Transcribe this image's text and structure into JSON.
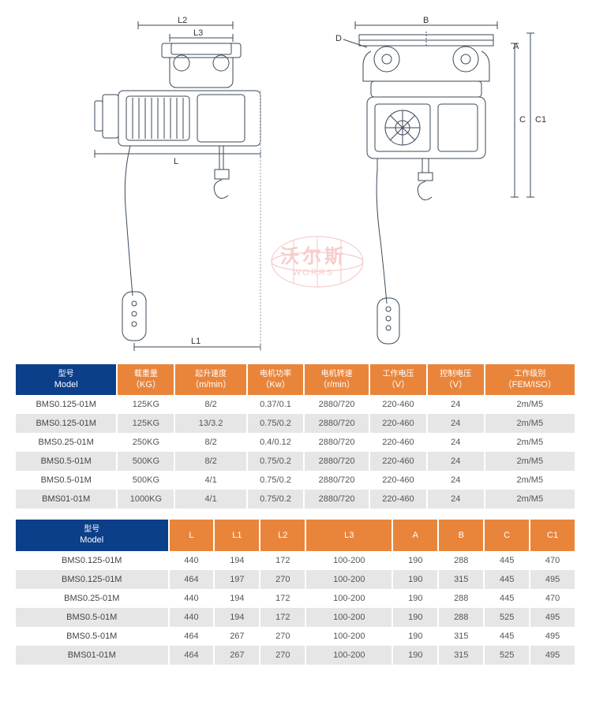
{
  "diagram": {
    "labels": {
      "L": "L",
      "L1": "L1",
      "L2": "L2",
      "L3": "L3",
      "A": "A",
      "B": "B",
      "C": "C",
      "C1": "C1",
      "D": "D"
    },
    "watermark": {
      "chinese": "沃尔斯",
      "english": "WORRS"
    },
    "stroke_color": "#3a4a5a",
    "stroke_light": "#8a98a8",
    "label_color": "#333333"
  },
  "table1": {
    "header_bg_first": "#0b3f8a",
    "header_bg_rest": "#e9853b",
    "headers": [
      {
        "l1": "型号",
        "l2": "Model"
      },
      {
        "l1": "载重量",
        "l2": "（KG）"
      },
      {
        "l1": "起升速度",
        "l2": "（m/min）"
      },
      {
        "l1": "电机功率",
        "l2": "（Kw）"
      },
      {
        "l1": "电机转速",
        "l2": "（r/min）"
      },
      {
        "l1": "工作电压",
        "l2": "（V）"
      },
      {
        "l1": "控制电压",
        "l2": "（V）"
      },
      {
        "l1": "工作级别",
        "l2": "（FEM/ISO）"
      }
    ],
    "rows": [
      [
        "BMS0.125-01M",
        "125KG",
        "8/2",
        "0.37/0.1",
        "2880/720",
        "220-460",
        "24",
        "2m/M5"
      ],
      [
        "BMS0.125-01M",
        "125KG",
        "13/3.2",
        "0.75/0.2",
        "2880/720",
        "220-460",
        "24",
        "2m/M5"
      ],
      [
        "BMS0.25-01M",
        "250KG",
        "8/2",
        "0.4/0.12",
        "2880/720",
        "220-460",
        "24",
        "2m/M5"
      ],
      [
        "BMS0.5-01M",
        "500KG",
        "8/2",
        "0.75/0.2",
        "2880/720",
        "220-460",
        "24",
        "2m/M5"
      ],
      [
        "BMS0.5-01M",
        "500KG",
        "4/1",
        "0.75/0.2",
        "2880/720",
        "220-460",
        "24",
        "2m/M5"
      ],
      [
        "BMS01-01M",
        "1000KG",
        "4/1",
        "0.75/0.2",
        "2880/720",
        "220-460",
        "24",
        "2m/M5"
      ]
    ]
  },
  "table2": {
    "headers": [
      {
        "l1": "型号",
        "l2": "Model"
      },
      {
        "l1": "",
        "l2": "L"
      },
      {
        "l1": "",
        "l2": "L1"
      },
      {
        "l1": "",
        "l2": "L2"
      },
      {
        "l1": "",
        "l2": "L3"
      },
      {
        "l1": "",
        "l2": "A"
      },
      {
        "l1": "",
        "l2": "B"
      },
      {
        "l1": "",
        "l2": "C"
      },
      {
        "l1": "",
        "l2": "C1"
      }
    ],
    "rows": [
      [
        "BMS0.125-01M",
        "440",
        "194",
        "172",
        "100-200",
        "190",
        "288",
        "445",
        "470"
      ],
      [
        "BMS0.125-01M",
        "464",
        "197",
        "270",
        "100-200",
        "190",
        "315",
        "445",
        "495"
      ],
      [
        "BMS0.25-01M",
        "440",
        "194",
        "172",
        "100-200",
        "190",
        "288",
        "445",
        "470"
      ],
      [
        "BMS0.5-01M",
        "440",
        "194",
        "172",
        "100-200",
        "190",
        "288",
        "525",
        "495"
      ],
      [
        "BMS0.5-01M",
        "464",
        "267",
        "270",
        "100-200",
        "190",
        "315",
        "445",
        "495"
      ],
      [
        "BMS01-01M",
        "464",
        "267",
        "270",
        "100-200",
        "190",
        "315",
        "525",
        "495"
      ]
    ]
  }
}
